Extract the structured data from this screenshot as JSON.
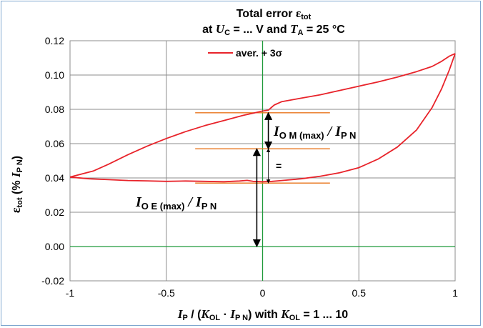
{
  "chart_data": {
    "type": "line",
    "title_line1": "Total error ",
    "title_eps": "ε",
    "title_eps_sub": "tot",
    "title_line2_a": "at ",
    "title_uc": "U",
    "title_uc_sub": "C",
    "title_line2_b": " = ... V and ",
    "title_ta": "T",
    "title_ta_sub": "A",
    "title_line2_c": " = 25 °C",
    "xlabel": {
      "ip": "I",
      "ip_sub": "P",
      "mid1": " / (",
      "kol": "K",
      "kol_sub": "OL",
      "mid2": " · ",
      "ipn": "I",
      "ipn_sub": "P N",
      "mid3": ")   with ",
      "kol2": "K",
      "kol2_sub": "OL",
      "tail": " = 1 ... 10"
    },
    "ylabel": {
      "eps": "ε",
      "eps_sub": "tot",
      "mid": " (% ",
      "ipn": "I",
      "ipn_sub": "P N",
      "tail": ")"
    },
    "xlim": [
      -1,
      1
    ],
    "ylim": [
      -0.02,
      0.12
    ],
    "x_ticks": [
      -1,
      -0.5,
      0,
      0.5,
      1
    ],
    "x_tick_labels": [
      "-1",
      "-0.5",
      "0",
      "0.5",
      "1"
    ],
    "y_ticks": [
      -0.02,
      0,
      0.02,
      0.04,
      0.06,
      0.08,
      0.1,
      0.12
    ],
    "y_tick_labels": [
      "-0.02",
      "0.00",
      "0.02",
      "0.04",
      "0.06",
      "0.08",
      "0.10",
      "0.12"
    ],
    "grid": true,
    "legend_position": "top-center",
    "series": [
      {
        "name": "aver. + 3σ",
        "color": "#e8232a",
        "upper": [
          [
            -1,
            0.0405
          ],
          [
            -0.95,
            0.042
          ],
          [
            -0.88,
            0.044
          ],
          [
            -0.8,
            0.048
          ],
          [
            -0.7,
            0.0535
          ],
          [
            -0.6,
            0.0585
          ],
          [
            -0.5,
            0.063
          ],
          [
            -0.4,
            0.067
          ],
          [
            -0.3,
            0.0705
          ],
          [
            -0.2,
            0.0735
          ],
          [
            -0.1,
            0.0765
          ],
          [
            -0.03,
            0.0782
          ],
          [
            0.0,
            0.079
          ],
          [
            0.03,
            0.0795
          ],
          [
            0.06,
            0.0825
          ],
          [
            0.1,
            0.0845
          ],
          [
            0.2,
            0.0865
          ],
          [
            0.3,
            0.0885
          ],
          [
            0.4,
            0.091
          ],
          [
            0.5,
            0.0935
          ],
          [
            0.6,
            0.096
          ],
          [
            0.7,
            0.0988
          ],
          [
            0.8,
            0.102
          ],
          [
            0.88,
            0.105
          ],
          [
            0.93,
            0.108
          ],
          [
            0.97,
            0.111
          ],
          [
            1.0,
            0.1125
          ]
        ],
        "lower": [
          [
            -1,
            0.0405
          ],
          [
            -0.9,
            0.0395
          ],
          [
            -0.8,
            0.039
          ],
          [
            -0.7,
            0.0385
          ],
          [
            -0.6,
            0.0383
          ],
          [
            -0.5,
            0.038
          ],
          [
            -0.4,
            0.0382
          ],
          [
            -0.3,
            0.038
          ],
          [
            -0.2,
            0.0378
          ],
          [
            -0.12,
            0.0382
          ],
          [
            -0.08,
            0.0386
          ],
          [
            -0.05,
            0.038
          ],
          [
            0.0,
            0.0378
          ],
          [
            0.05,
            0.038
          ],
          [
            0.1,
            0.0385
          ],
          [
            0.2,
            0.0395
          ],
          [
            0.3,
            0.041
          ],
          [
            0.4,
            0.043
          ],
          [
            0.5,
            0.046
          ],
          [
            0.6,
            0.051
          ],
          [
            0.7,
            0.058
          ],
          [
            0.8,
            0.068
          ],
          [
            0.88,
            0.081
          ],
          [
            0.93,
            0.092
          ],
          [
            0.97,
            0.103
          ],
          [
            1.0,
            0.1125
          ]
        ]
      }
    ],
    "reference_lines": {
      "color": "#e8741c",
      "x_range": [
        -0.35,
        0.35
      ],
      "y_values": [
        0.078,
        0.057,
        0.037
      ]
    },
    "axis_lines": {
      "color": "#1f9a3a",
      "x0": 0,
      "y0": 0
    },
    "annotations": {
      "iom": {
        "main": "I",
        "sub": "O M (max)",
        "mid": " / ",
        "main2": "I",
        "sub2": "P N"
      },
      "ioe": {
        "main": "I",
        "sub": "O E (max)",
        "mid": " / ",
        "main2": "I",
        "sub2": "P N"
      },
      "equal_sign": "=",
      "arrow_iom": {
        "x": 0.03,
        "y_from": 0.057,
        "y_to": 0.078
      },
      "arrow_eq": {
        "x": 0.03,
        "y_from": 0.037,
        "y_to": 0.057
      },
      "arrow_ioe": {
        "x": -0.03,
        "y_from": 0.0,
        "y_to": 0.057
      }
    }
  }
}
